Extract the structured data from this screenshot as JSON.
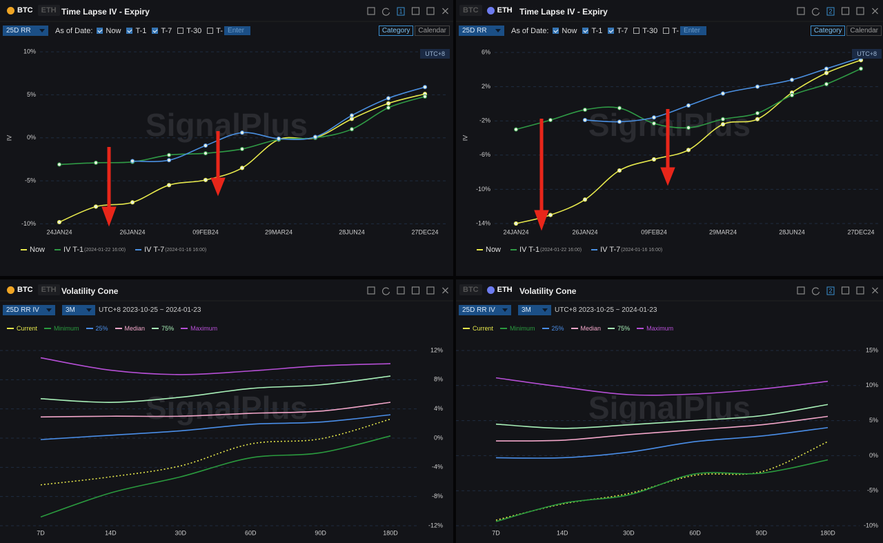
{
  "panels": [
    {
      "coins": [
        "BTC",
        "ETH"
      ],
      "active_coin": 0,
      "title": "Time Lapse IV - Expiry",
      "badge": "1",
      "select": "25D RR",
      "as_of": "As of Date:",
      "checks": [
        {
          "label": "Now",
          "checked": true
        },
        {
          "label": "T-1",
          "checked": true
        },
        {
          "label": "T-7",
          "checked": true
        },
        {
          "label": "T-30",
          "checked": false
        },
        {
          "label": "T-",
          "checked": false
        }
      ],
      "input_placeholder": "Enter",
      "buttons": [
        "Category",
        "Calendar"
      ],
      "active_button": 0,
      "timezone": "UTC+8",
      "watermark": "SignalPlus"
    },
    {
      "coins": [
        "BTC",
        "ETH"
      ],
      "active_coin": 1,
      "title": "Time Lapse IV - Expiry",
      "badge": "2",
      "select": "25D RR",
      "as_of": "As of Date:",
      "checks": [
        {
          "label": "Now",
          "checked": true
        },
        {
          "label": "T-1",
          "checked": true
        },
        {
          "label": "T-7",
          "checked": true
        },
        {
          "label": "T-30",
          "checked": false
        },
        {
          "label": "T-",
          "checked": false
        }
      ],
      "input_placeholder": "Enter",
      "buttons": [
        "Category",
        "Calendar"
      ],
      "active_button": 0,
      "timezone": "UTC+8",
      "watermark": "SignalPlus"
    },
    {
      "coins": [
        "BTC",
        "ETH"
      ],
      "active_coin": 0,
      "title": "Volatility Cone",
      "select": "25D RR IV",
      "period": "3M",
      "range": "UTC+8 2023-10-25 ~ 2024-01-23",
      "watermark": "SignalPlus"
    },
    {
      "coins": [
        "BTC",
        "ETH"
      ],
      "active_coin": 1,
      "title": "Volatility Cone",
      "badge": "2",
      "select": "25D RR IV",
      "period": "3M",
      "range": "UTC+8 2023-10-25 ~ 2024-01-23",
      "watermark": "SignalPlus"
    }
  ],
  "chart_data": [
    {
      "type": "line",
      "y_label": "IV",
      "markers": true,
      "grid": true,
      "categories": [
        "24JAN24",
        null,
        "26JAN24",
        null,
        "09FEB24",
        null,
        "29MAR24",
        null,
        "28JUN24",
        null,
        "27DEC24"
      ],
      "ylim": [
        -11,
        11
      ],
      "yticks": [
        {
          "value": 10,
          "label": "10%"
        },
        {
          "value": 5,
          "label": "5%"
        },
        {
          "value": 0,
          "label": "0%"
        },
        {
          "value": -5,
          "label": "-5%"
        },
        {
          "value": -10,
          "label": "-10%"
        }
      ],
      "series": [
        {
          "name": "Now",
          "color": "#e6e84c",
          "values": [
            -9.8,
            -8.0,
            -7.5,
            -5.5,
            -4.9,
            -3.5,
            -0.2,
            0.0,
            2.2,
            4.0,
            5.1
          ]
        },
        {
          "name": "IV T-1",
          "note": "(2024-01-22 16:00)",
          "color": "#2f9a45",
          "values": [
            -3.1,
            -2.9,
            -2.8,
            -2.0,
            -1.8,
            -1.3,
            -0.2,
            0.0,
            1.0,
            3.5,
            4.8
          ]
        },
        {
          "name": "IV T-7",
          "note": "(2024-01-16 16:00)",
          "color": "#4a8fe0",
          "values": [
            null,
            null,
            -2.7,
            -2.6,
            -0.9,
            0.6,
            -0.1,
            0.1,
            2.6,
            4.6,
            5.9
          ]
        }
      ]
    },
    {
      "type": "line",
      "y_label": "IV",
      "markers": true,
      "grid": true,
      "categories": [
        "24JAN24",
        null,
        "26JAN24",
        null,
        "09FEB24",
        null,
        "29MAR24",
        null,
        "28JUN24",
        null,
        "27DEC24"
      ],
      "ylim": [
        -15,
        7
      ],
      "yticks": [
        {
          "value": 6,
          "label": "6%"
        },
        {
          "value": 2,
          "label": "2%"
        },
        {
          "value": -2,
          "label": "-2%"
        },
        {
          "value": -6,
          "label": "-6%"
        },
        {
          "value": -10,
          "label": "-10%"
        },
        {
          "value": -14,
          "label": "-14%"
        }
      ],
      "series": [
        {
          "name": "Now",
          "color": "#e6e84c",
          "values": [
            -14.0,
            -13.0,
            -11.2,
            -7.8,
            -6.5,
            -5.4,
            -2.4,
            -1.8,
            1.3,
            3.6,
            5.1
          ]
        },
        {
          "name": "IV T-1",
          "note": "(2024-01-22 16:00)",
          "color": "#2f9a45",
          "values": [
            -3.0,
            -1.9,
            -0.7,
            -0.5,
            -2.3,
            -2.8,
            -1.8,
            -1.1,
            1.0,
            2.3,
            4.1
          ]
        },
        {
          "name": "IV T-7",
          "note": "(2024-01-16 16:00)",
          "color": "#4a8fe0",
          "values": [
            null,
            null,
            -1.9,
            -2.1,
            -1.6,
            -0.2,
            1.2,
            2.0,
            2.8,
            4.1,
            5.4
          ]
        }
      ]
    },
    {
      "type": "line",
      "markers": false,
      "grid": true,
      "categories": [
        "7D",
        "14D",
        "30D",
        "60D",
        "90D",
        "180D"
      ],
      "ylim": [
        -12,
        12
      ],
      "yticks": [
        {
          "value": 12,
          "label": "12%"
        },
        {
          "value": 8,
          "label": "8%"
        },
        {
          "value": 4,
          "label": "4%"
        },
        {
          "value": 0,
          "label": "0%"
        },
        {
          "value": -4,
          "label": "-4%"
        },
        {
          "value": -8,
          "label": "-8%"
        },
        {
          "value": -12,
          "label": "-12%"
        }
      ],
      "series": [
        {
          "name": "Current",
          "color": "#e6e84c",
          "dashed": true,
          "values": [
            -6.4,
            -5.3,
            -3.8,
            -0.8,
            -0.1,
            2.6
          ]
        },
        {
          "name": "Minimum",
          "color": "#2a9a3e",
          "values": [
            -10.8,
            -7.5,
            -5.3,
            -2.7,
            -2.0,
            0.3
          ]
        },
        {
          "name": "25%",
          "color": "#4a8ee8",
          "values": [
            -0.2,
            0.4,
            1.0,
            1.9,
            2.2,
            3.2
          ]
        },
        {
          "name": "Median",
          "color": "#f2a6c9",
          "values": [
            2.9,
            3.0,
            3.0,
            3.4,
            3.7,
            4.9
          ]
        },
        {
          "name": "75%",
          "color": "#a8f0b8",
          "values": [
            5.4,
            4.9,
            5.6,
            6.8,
            7.3,
            8.5
          ]
        },
        {
          "name": "Maximum",
          "color": "#b64fd6",
          "values": [
            11.0,
            9.3,
            8.7,
            9.2,
            9.9,
            10.2
          ]
        }
      ]
    },
    {
      "type": "line",
      "markers": false,
      "grid": true,
      "categories": [
        "7D",
        "14D",
        "30D",
        "60D",
        "90D",
        "180D"
      ],
      "ylim": [
        -10,
        15
      ],
      "yticks": [
        {
          "value": 15,
          "label": "15%"
        },
        {
          "value": 10,
          "label": "10%"
        },
        {
          "value": 5,
          "label": "5%"
        },
        {
          "value": 0,
          "label": "0%"
        },
        {
          "value": -5,
          "label": "-5%"
        },
        {
          "value": -10,
          "label": "-10%"
        }
      ],
      "series": [
        {
          "name": "Current",
          "color": "#e6e84c",
          "dashed": true,
          "values": [
            -9.2,
            -6.9,
            -5.4,
            -2.8,
            -2.3,
            2.0
          ]
        },
        {
          "name": "Minimum",
          "color": "#2a9a3e",
          "values": [
            -9.4,
            -6.8,
            -5.6,
            -2.6,
            -2.5,
            -0.6
          ]
        },
        {
          "name": "25%",
          "color": "#4a8ee8",
          "values": [
            -0.3,
            -0.3,
            0.5,
            2.0,
            2.8,
            4.0
          ]
        },
        {
          "name": "Median",
          "color": "#f2a6c9",
          "values": [
            2.1,
            2.2,
            3.0,
            3.7,
            4.4,
            5.6
          ]
        },
        {
          "name": "75%",
          "color": "#a8f0b8",
          "values": [
            4.5,
            3.9,
            4.4,
            5.0,
            5.7,
            7.3
          ]
        },
        {
          "name": "Maximum",
          "color": "#b64fd6",
          "values": [
            11.1,
            9.8,
            8.7,
            8.8,
            9.5,
            10.6
          ]
        }
      ]
    }
  ]
}
